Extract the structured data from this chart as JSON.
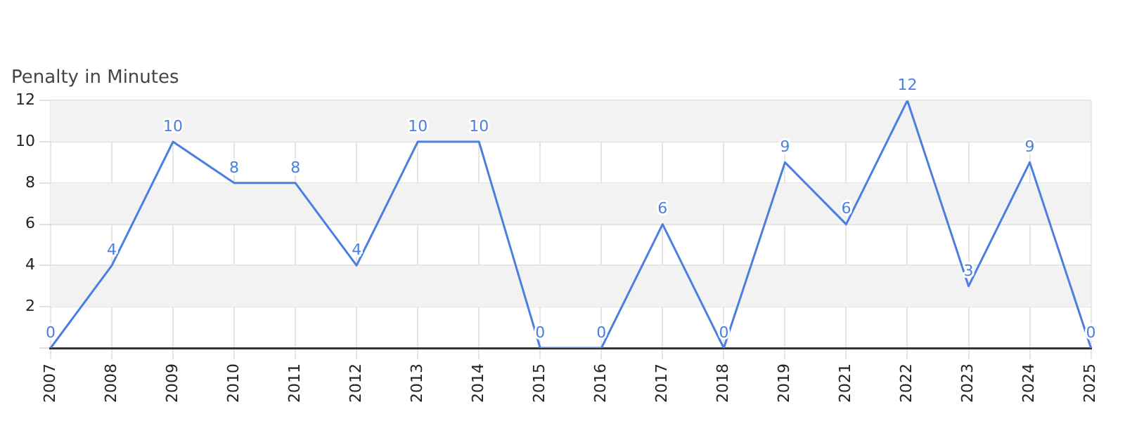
{
  "chart_data": {
    "type": "line",
    "title": "Penalty in Minutes",
    "categories": [
      "2007",
      "2008",
      "2009",
      "2010",
      "2011",
      "2012",
      "2013",
      "2014",
      "2015",
      "2016",
      "2017",
      "2018",
      "2019",
      "2021",
      "2022",
      "2023",
      "2024",
      "2025"
    ],
    "series": [
      {
        "color": "#4a7fe0",
        "values": [
          0,
          4,
          10,
          8,
          8,
          4,
          10,
          10,
          0,
          0,
          6,
          0,
          9,
          6,
          12,
          3,
          9,
          0
        ]
      }
    ],
    "ylim": [
      0,
      12
    ],
    "yticks": [
      {
        "value": 0,
        "label": null
      },
      2,
      4,
      6,
      8,
      10,
      12
    ],
    "bands": [
      {
        "axis": "y",
        "from": 2,
        "to": 4,
        "color": "#f2f2f2"
      },
      {
        "axis": "y",
        "from": 6,
        "to": 8,
        "color": "#f2f2f2"
      },
      {
        "axis": "y",
        "from": 10,
        "to": 12,
        "color": "#f2f2f2"
      }
    ],
    "grid": true,
    "data_labels": true,
    "marker": "none",
    "line_style": "solid",
    "legend": false
  }
}
